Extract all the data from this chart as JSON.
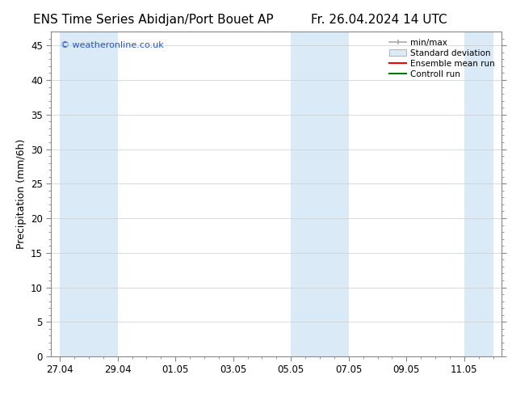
{
  "title_left": "ENS Time Series Abidjan/Port Bouet AP",
  "title_right": "Fr. 26.04.2024 14 UTC",
  "ylabel": "Precipitation (mm/6h)",
  "xlabel_ticks": [
    "27.04",
    "29.04",
    "01.05",
    "03.05",
    "05.05",
    "07.05",
    "09.05",
    "11.05"
  ],
  "x_tick_positions": [
    0,
    2,
    4,
    6,
    8,
    10,
    12,
    14
  ],
  "ylim": [
    0,
    47
  ],
  "yticks": [
    0,
    5,
    10,
    15,
    20,
    25,
    30,
    35,
    40,
    45
  ],
  "xlim": [
    -0.3,
    15.3
  ],
  "watermark": "© weatheronline.co.uk",
  "bg_color": "#ffffff",
  "plot_bg_color": "#ffffff",
  "band_color": "#dbeaf7",
  "legend_labels": [
    "min/max",
    "Standard deviation",
    "Ensemble mean run",
    "Controll run"
  ],
  "legend_line_color": "#aaaaaa",
  "legend_std_face": "#dbeaf7",
  "legend_ens_color": "#ff0000",
  "legend_ctrl_color": "#007700",
  "shade_regions": [
    [
      0,
      1
    ],
    [
      1,
      2
    ],
    [
      8,
      9
    ],
    [
      9,
      10
    ],
    [
      14,
      15
    ]
  ],
  "title_fontsize": 11,
  "tick_fontsize": 8.5,
  "label_fontsize": 9
}
